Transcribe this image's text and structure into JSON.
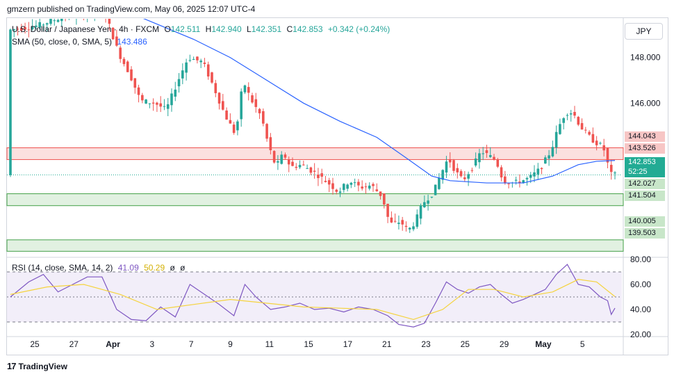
{
  "header": {
    "publisher_text": "gmzern published on TradingView.com, May 06, 2025 12:07 UTC-4"
  },
  "legend": {
    "symbol": "U.S. Dollar / Japanese Yen · 4h · FXCM",
    "ohlc": {
      "o_label": "O",
      "o": "142.511",
      "h_label": "H",
      "h": "142.940",
      "l_label": "L",
      "l": "142.351",
      "c_label": "C",
      "c": "142.853",
      "change": "+0.342 (+0.24%)"
    },
    "sma": {
      "label": "SMA (50, close, 0, SMA, 5)",
      "value": "143.486"
    },
    "rsi": {
      "label": "RSI (14, close, SMA, 14, 2)",
      "rsi_value": "41.09",
      "ma_value": "50.29",
      "extra1": "ø",
      "extra2": "ø"
    }
  },
  "currency_button": "JPY",
  "price_axis": {
    "ticks": [
      "148.000",
      "146.000"
    ]
  },
  "rsi_axis": {
    "ticks": [
      "80.00",
      "60.00",
      "40.00",
      "20.00"
    ]
  },
  "time_axis": {
    "ticks": [
      "25",
      "27",
      "Apr",
      "3",
      "7",
      "9",
      "11",
      "15",
      "17",
      "21",
      "23",
      "25",
      "29",
      "May",
      "5"
    ]
  },
  "price_tags": {
    "zone_top_high": "144.043",
    "zone_top_low": "143.526",
    "current_price": "142.853",
    "countdown": "52:25",
    "zone_mid_high": "142.027",
    "zone_mid_low": "141.504",
    "zone_low_high": "140.005",
    "zone_low_low": "139.503"
  },
  "colors": {
    "up": "#26a69a",
    "down": "#ef5350",
    "sma": "#2962ff",
    "rsi": "#7e57c2",
    "rsi_ma": "#f5d33d",
    "zone_red": "#f7c6c5",
    "zone_green": "#c8e6c9",
    "current": "#22ab94"
  },
  "footer": {
    "brand": "TradingView"
  },
  "chart_data": {
    "type": "candlestick",
    "symbol": "USDJPY",
    "timeframe": "4h",
    "y_range": [
      139.3,
      149.7
    ],
    "x_ticks": [
      "25",
      "27",
      "Apr",
      "3",
      "7",
      "9",
      "11",
      "15",
      "17",
      "21",
      "23",
      "25",
      "29",
      "May",
      "5"
    ],
    "zones": [
      {
        "high": 144.043,
        "low": 143.526,
        "color": "red"
      },
      {
        "high": 142.027,
        "low": 141.504,
        "color": "green"
      },
      {
        "high": 140.005,
        "low": 139.503,
        "color": "green"
      }
    ],
    "current_price": 142.853,
    "price_path": [
      {
        "t": 0,
        "p": 149.2
      },
      {
        "t": 8,
        "p": 149.4
      },
      {
        "t": 15,
        "p": 149.8
      },
      {
        "t": 22,
        "p": 149.9
      },
      {
        "t": 26,
        "p": 150.1
      },
      {
        "t": 30,
        "p": 148.2
      },
      {
        "t": 33,
        "p": 147.3
      },
      {
        "t": 36,
        "p": 146.1
      },
      {
        "t": 40,
        "p": 146.0
      },
      {
        "t": 43,
        "p": 145.7
      },
      {
        "t": 46,
        "p": 146.9
      },
      {
        "t": 49,
        "p": 148.0
      },
      {
        "t": 53,
        "p": 147.8
      },
      {
        "t": 56,
        "p": 146.7
      },
      {
        "t": 59,
        "p": 145.5
      },
      {
        "t": 62,
        "p": 144.6
      },
      {
        "t": 64,
        "p": 147.0
      },
      {
        "t": 66,
        "p": 146.2
      },
      {
        "t": 69,
        "p": 145.4
      },
      {
        "t": 71,
        "p": 144.1
      },
      {
        "t": 73,
        "p": 143.2
      },
      {
        "t": 75,
        "p": 143.8
      },
      {
        "t": 77,
        "p": 143.2
      },
      {
        "t": 80,
        "p": 143.3
      },
      {
        "t": 84,
        "p": 142.9
      },
      {
        "t": 88,
        "p": 142.4
      },
      {
        "t": 90,
        "p": 142.1
      },
      {
        "t": 93,
        "p": 142.6
      },
      {
        "t": 96,
        "p": 142.3
      },
      {
        "t": 99,
        "p": 142.4
      },
      {
        "t": 102,
        "p": 141.9
      },
      {
        "t": 104,
        "p": 140.7
      },
      {
        "t": 107,
        "p": 140.8
      },
      {
        "t": 109,
        "p": 140.4
      },
      {
        "t": 111,
        "p": 140.8
      },
      {
        "t": 113,
        "p": 141.6
      },
      {
        "t": 116,
        "p": 142.1
      },
      {
        "t": 118,
        "p": 142.9
      },
      {
        "t": 120,
        "p": 143.6
      },
      {
        "t": 122,
        "p": 143.0
      },
      {
        "t": 124,
        "p": 142.6
      },
      {
        "t": 127,
        "p": 143.3
      },
      {
        "t": 129,
        "p": 143.9
      },
      {
        "t": 131,
        "p": 143.7
      },
      {
        "t": 133,
        "p": 143.5
      },
      {
        "t": 135,
        "p": 142.6
      },
      {
        "t": 138,
        "p": 142.5
      },
      {
        "t": 140,
        "p": 142.6
      },
      {
        "t": 142,
        "p": 142.7
      },
      {
        "t": 145,
        "p": 143.1
      },
      {
        "t": 148,
        "p": 143.9
      },
      {
        "t": 150,
        "p": 144.9
      },
      {
        "t": 152,
        "p": 145.6
      },
      {
        "t": 154,
        "p": 145.6
      },
      {
        "t": 156,
        "p": 145.0
      },
      {
        "t": 158,
        "p": 144.6
      },
      {
        "t": 160,
        "p": 144.3
      },
      {
        "t": 162,
        "p": 144.1
      },
      {
        "t": 163,
        "p": 143.8
      },
      {
        "t": 164,
        "p": 142.9
      },
      {
        "t": 165,
        "p": 142.85
      }
    ],
    "sma_path": [
      {
        "t": 0,
        "p": 150.4
      },
      {
        "t": 20,
        "p": 150.3
      },
      {
        "t": 35,
        "p": 149.8
      },
      {
        "t": 50,
        "p": 148.8
      },
      {
        "t": 60,
        "p": 148.0
      },
      {
        "t": 70,
        "p": 147.0
      },
      {
        "t": 80,
        "p": 146.0
      },
      {
        "t": 90,
        "p": 145.2
      },
      {
        "t": 100,
        "p": 144.5
      },
      {
        "t": 108,
        "p": 143.6
      },
      {
        "t": 115,
        "p": 142.8
      },
      {
        "t": 120,
        "p": 142.6
      },
      {
        "t": 130,
        "p": 142.5
      },
      {
        "t": 140,
        "p": 142.5
      },
      {
        "t": 148,
        "p": 142.8
      },
      {
        "t": 155,
        "p": 143.3
      },
      {
        "t": 160,
        "p": 143.45
      },
      {
        "t": 165,
        "p": 143.486
      }
    ],
    "rsi": {
      "ylim": [
        20,
        80
      ],
      "bands": [
        70,
        50,
        30
      ],
      "values": [
        {
          "t": 0,
          "v": 50
        },
        {
          "t": 5,
          "v": 62
        },
        {
          "t": 9,
          "v": 68
        },
        {
          "t": 13,
          "v": 54
        },
        {
          "t": 17,
          "v": 60
        },
        {
          "t": 21,
          "v": 66
        },
        {
          "t": 25,
          "v": 66
        },
        {
          "t": 29,
          "v": 40
        },
        {
          "t": 33,
          "v": 32
        },
        {
          "t": 37,
          "v": 31
        },
        {
          "t": 41,
          "v": 42
        },
        {
          "t": 45,
          "v": 34
        },
        {
          "t": 49,
          "v": 60
        },
        {
          "t": 53,
          "v": 52
        },
        {
          "t": 57,
          "v": 44
        },
        {
          "t": 61,
          "v": 35
        },
        {
          "t": 64,
          "v": 60
        },
        {
          "t": 67,
          "v": 50
        },
        {
          "t": 71,
          "v": 40
        },
        {
          "t": 75,
          "v": 42
        },
        {
          "t": 79,
          "v": 45
        },
        {
          "t": 83,
          "v": 40
        },
        {
          "t": 87,
          "v": 41
        },
        {
          "t": 91,
          "v": 38
        },
        {
          "t": 95,
          "v": 42
        },
        {
          "t": 99,
          "v": 40
        },
        {
          "t": 103,
          "v": 35
        },
        {
          "t": 106,
          "v": 28
        },
        {
          "t": 110,
          "v": 26
        },
        {
          "t": 113,
          "v": 29
        },
        {
          "t": 116,
          "v": 45
        },
        {
          "t": 119,
          "v": 62
        },
        {
          "t": 122,
          "v": 56
        },
        {
          "t": 125,
          "v": 53
        },
        {
          "t": 128,
          "v": 58
        },
        {
          "t": 131,
          "v": 60
        },
        {
          "t": 134,
          "v": 52
        },
        {
          "t": 137,
          "v": 45
        },
        {
          "t": 140,
          "v": 48
        },
        {
          "t": 143,
          "v": 52
        },
        {
          "t": 146,
          "v": 56
        },
        {
          "t": 149,
          "v": 68
        },
        {
          "t": 152,
          "v": 76
        },
        {
          "t": 155,
          "v": 60
        },
        {
          "t": 158,
          "v": 58
        },
        {
          "t": 161,
          "v": 50
        },
        {
          "t": 163,
          "v": 47
        },
        {
          "t": 164,
          "v": 36
        },
        {
          "t": 165,
          "v": 41.09
        }
      ],
      "ma_values": [
        {
          "t": 0,
          "v": 52
        },
        {
          "t": 10,
          "v": 58
        },
        {
          "t": 20,
          "v": 60
        },
        {
          "t": 30,
          "v": 52
        },
        {
          "t": 40,
          "v": 40
        },
        {
          "t": 50,
          "v": 44
        },
        {
          "t": 60,
          "v": 48
        },
        {
          "t": 70,
          "v": 45
        },
        {
          "t": 80,
          "v": 42
        },
        {
          "t": 90,
          "v": 41
        },
        {
          "t": 100,
          "v": 40
        },
        {
          "t": 110,
          "v": 32
        },
        {
          "t": 118,
          "v": 40
        },
        {
          "t": 125,
          "v": 56
        },
        {
          "t": 132,
          "v": 56
        },
        {
          "t": 140,
          "v": 50
        },
        {
          "t": 148,
          "v": 54
        },
        {
          "t": 155,
          "v": 64
        },
        {
          "t": 160,
          "v": 62
        },
        {
          "t": 165,
          "v": 50.29
        }
      ]
    }
  }
}
